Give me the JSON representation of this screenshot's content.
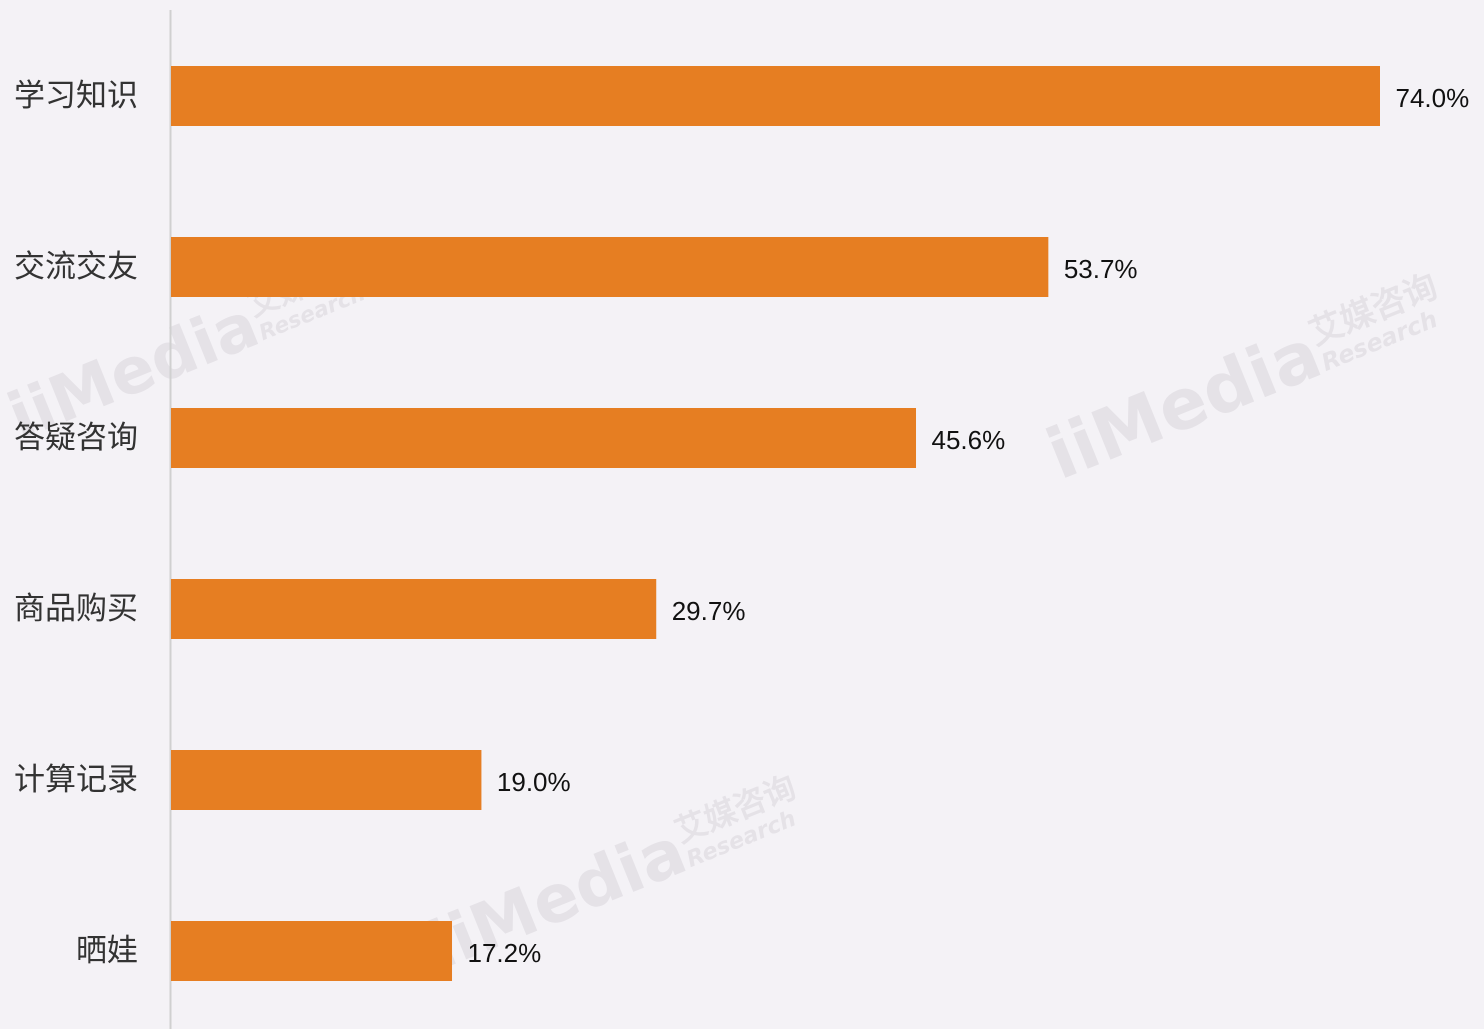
{
  "chart_data": {
    "type": "bar",
    "orientation": "horizontal",
    "categories": [
      "学习知识",
      "交流交友",
      "答疑咨询",
      "商品购买",
      "计算记录",
      "晒娃"
    ],
    "values": [
      74.0,
      53.7,
      45.6,
      29.7,
      19.0,
      17.2
    ],
    "value_labels": [
      "74.0%",
      "53.7%",
      "45.6%",
      "29.7%",
      "19.0%",
      "17.2%"
    ],
    "unit": "%",
    "xlim": [
      0,
      74
    ],
    "grid": false,
    "legend": "none",
    "title": "",
    "xlabel": "",
    "ylabel": ""
  },
  "colors": {
    "bar": "#e67e22",
    "axis": "#d0d0d0",
    "background": "#f4f2f6"
  },
  "watermark": {
    "brand": "iiMedia",
    "cn": "艾媒咨询",
    "en": "Research"
  }
}
